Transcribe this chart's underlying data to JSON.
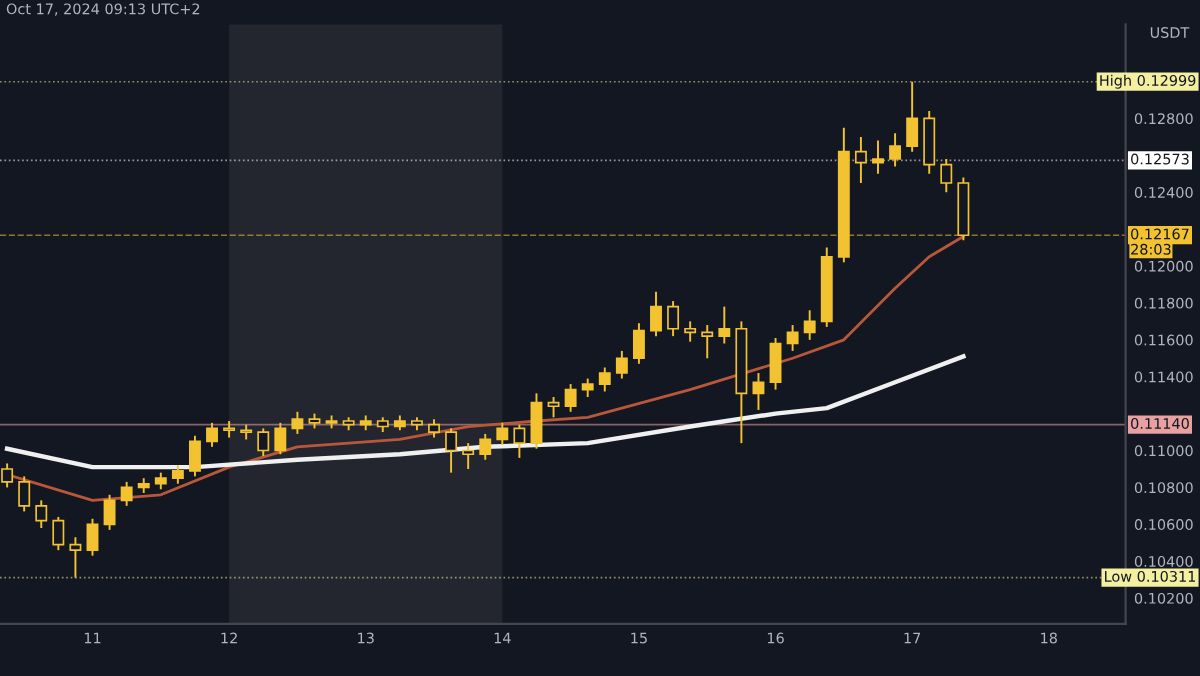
{
  "chart_data": {
    "type": "candlestick",
    "ylabel": "USDT",
    "annotations": [
      "Oct 17, 2024 09:13 UTC+2",
      "28:03"
    ],
    "x": [
      "2024-10-10T09:00",
      "2024-10-10T12:00",
      "2024-10-10T15:00",
      "2024-10-10T18:00",
      "2024-10-10T21:00",
      "2024-10-11T00:00",
      "2024-10-11T03:00",
      "2024-10-11T06:00",
      "2024-10-11T09:00",
      "2024-10-11T12:00",
      "2024-10-11T15:00",
      "2024-10-11T18:00",
      "2024-10-11T21:00",
      "2024-10-12T00:00",
      "2024-10-12T03:00",
      "2024-10-12T06:00",
      "2024-10-12T09:00",
      "2024-10-12T12:00",
      "2024-10-12T15:00",
      "2024-10-12T18:00",
      "2024-10-12T21:00",
      "2024-10-13T00:00",
      "2024-10-13T03:00",
      "2024-10-13T06:00",
      "2024-10-13T09:00",
      "2024-10-13T12:00",
      "2024-10-13T15:00",
      "2024-10-13T18:00",
      "2024-10-13T21:00",
      "2024-10-14T00:00",
      "2024-10-14T03:00",
      "2024-10-14T06:00",
      "2024-10-14T09:00",
      "2024-10-14T12:00",
      "2024-10-14T15:00",
      "2024-10-14T18:00",
      "2024-10-14T21:00",
      "2024-10-15T00:00",
      "2024-10-15T03:00",
      "2024-10-15T06:00",
      "2024-10-15T09:00",
      "2024-10-15T12:00",
      "2024-10-15T15:00",
      "2024-10-15T18:00",
      "2024-10-15T21:00",
      "2024-10-16T00:00",
      "2024-10-16T03:00",
      "2024-10-16T06:00",
      "2024-10-16T09:00",
      "2024-10-16T12:00",
      "2024-10-16T15:00",
      "2024-10-16T18:00",
      "2024-10-16T21:00",
      "2024-10-17T00:00",
      "2024-10-17T03:00",
      "2024-10-17T06:00",
      "2024-10-17T09:00"
    ],
    "ohlc": [
      [
        0.109,
        0.1093,
        0.108,
        0.1083
      ],
      [
        0.1083,
        0.1086,
        0.1067,
        0.107
      ],
      [
        0.107,
        0.1073,
        0.1058,
        0.1062
      ],
      [
        0.1062,
        0.1064,
        0.1046,
        0.1049
      ],
      [
        0.1049,
        0.1053,
        0.10311,
        0.1046
      ],
      [
        0.1046,
        0.1063,
        0.1043,
        0.106
      ],
      [
        0.106,
        0.1076,
        0.1057,
        0.1073
      ],
      [
        0.1073,
        0.1083,
        0.107,
        0.108
      ],
      [
        0.108,
        0.1085,
        0.1077,
        0.1082
      ],
      [
        0.1082,
        0.1088,
        0.1079,
        0.1085
      ],
      [
        0.1085,
        0.1092,
        0.1082,
        0.1089
      ],
      [
        0.1089,
        0.1108,
        0.1086,
        0.1105
      ],
      [
        0.1105,
        0.1115,
        0.1102,
        0.1112
      ],
      [
        0.1112,
        0.1116,
        0.1107,
        0.1111
      ],
      [
        0.1111,
        0.1114,
        0.1106,
        0.111
      ],
      [
        0.111,
        0.1112,
        0.1097,
        0.11
      ],
      [
        0.11,
        0.1115,
        0.1098,
        0.1112
      ],
      [
        0.1112,
        0.1121,
        0.1109,
        0.1117
      ],
      [
        0.1117,
        0.112,
        0.1112,
        0.1115
      ],
      [
        0.1115,
        0.1119,
        0.1112,
        0.1116
      ],
      [
        0.1116,
        0.1118,
        0.1111,
        0.1114
      ],
      [
        0.1114,
        0.1119,
        0.1111,
        0.1116
      ],
      [
        0.1116,
        0.1118,
        0.111,
        0.1113
      ],
      [
        0.1113,
        0.1119,
        0.1111,
        0.1116
      ],
      [
        0.1116,
        0.1118,
        0.1111,
        0.1114
      ],
      [
        0.1114,
        0.1117,
        0.1107,
        0.111
      ],
      [
        0.111,
        0.1112,
        0.1088,
        0.11
      ],
      [
        0.11,
        0.1104,
        0.109,
        0.1098
      ],
      [
        0.1098,
        0.1109,
        0.1095,
        0.1106
      ],
      [
        0.1106,
        0.1115,
        0.1103,
        0.1112
      ],
      [
        0.1112,
        0.1114,
        0.1096,
        0.1104
      ],
      [
        0.1104,
        0.1131,
        0.1101,
        0.1126
      ],
      [
        0.1126,
        0.1129,
        0.1118,
        0.1124
      ],
      [
        0.1124,
        0.1136,
        0.1121,
        0.1133
      ],
      [
        0.1133,
        0.1139,
        0.1129,
        0.1136
      ],
      [
        0.1136,
        0.1145,
        0.1132,
        0.1142
      ],
      [
        0.1142,
        0.1154,
        0.1139,
        0.115
      ],
      [
        0.115,
        0.1169,
        0.1147,
        0.1165
      ],
      [
        0.1165,
        0.1186,
        0.1162,
        0.1178
      ],
      [
        0.1178,
        0.1181,
        0.1162,
        0.1166
      ],
      [
        0.1166,
        0.117,
        0.1159,
        0.1164
      ],
      [
        0.1164,
        0.1168,
        0.115,
        0.1162
      ],
      [
        0.1162,
        0.1178,
        0.1158,
        0.1166
      ],
      [
        0.1166,
        0.117,
        0.1104,
        0.1131
      ],
      [
        0.1131,
        0.1142,
        0.1122,
        0.1137
      ],
      [
        0.1137,
        0.1161,
        0.1133,
        0.1158
      ],
      [
        0.1158,
        0.1168,
        0.1154,
        0.1164
      ],
      [
        0.1164,
        0.1176,
        0.116,
        0.117
      ],
      [
        0.117,
        0.121,
        0.1167,
        0.1205
      ],
      [
        0.1205,
        0.1275,
        0.1202,
        0.1262
      ],
      [
        0.1262,
        0.127,
        0.1245,
        0.1256
      ],
      [
        0.1256,
        0.1268,
        0.125,
        0.1258
      ],
      [
        0.1258,
        0.1272,
        0.1254,
        0.1265
      ],
      [
        0.1265,
        0.12999,
        0.1262,
        0.128
      ],
      [
        0.128,
        0.1284,
        0.125,
        0.1255
      ],
      [
        0.1255,
        0.1258,
        0.124,
        0.1245
      ],
      [
        0.1245,
        0.1248,
        0.1214,
        0.12167
      ]
    ],
    "color": "#f2c230",
    "series": [
      {
        "type": "line",
        "color": "#b8573a",
        "x": [
          "2024-10-10T09:00",
          "2024-10-11T00:00",
          "2024-10-11T12:00",
          "2024-10-12T00:00",
          "2024-10-12T12:00",
          "2024-10-13T06:00",
          "2024-10-13T18:00",
          "2024-10-14T06:00",
          "2024-10-14T15:00",
          "2024-10-15T09:00",
          "2024-10-16T03:00",
          "2024-10-16T12:00",
          "2024-10-16T21:00",
          "2024-10-17T03:00",
          "2024-10-17T09:00"
        ],
        "values": [
          0.1087,
          0.1073,
          0.1076,
          0.1091,
          0.1102,
          0.1106,
          0.1113,
          0.1116,
          0.1118,
          0.1133,
          0.115,
          0.116,
          0.1188,
          0.1205,
          0.1216
        ]
      },
      {
        "type": "line",
        "color": "#f0f0f0",
        "x": [
          "2024-10-10T09:00",
          "2024-10-11T00:00",
          "2024-10-11T18:00",
          "2024-10-12T12:00",
          "2024-10-13T06:00",
          "2024-10-13T21:00",
          "2024-10-14T15:00",
          "2024-10-15T09:00",
          "2024-10-16T00:00",
          "2024-10-16T09:00",
          "2024-10-16T21:00",
          "2024-10-17T09:00"
        ],
        "values": [
          0.1101,
          0.1091,
          0.1091,
          0.1095,
          0.1098,
          0.1102,
          0.1104,
          0.1113,
          0.112,
          0.1123,
          0.1137,
          0.1151
        ]
      }
    ],
    "xlim": [
      "2024-10-10T07:45",
      "2024-10-18T13:30"
    ],
    "xticks": [
      {
        "value": "2024-10-11",
        "label": "11"
      },
      {
        "value": "2024-10-12",
        "label": "12"
      },
      {
        "value": "2024-10-13",
        "label": "13"
      },
      {
        "value": "2024-10-14",
        "label": "14"
      },
      {
        "value": "2024-10-15",
        "label": "15"
      },
      {
        "value": "2024-10-16",
        "label": "16"
      },
      {
        "value": "2024-10-17",
        "label": "17"
      },
      {
        "value": "2024-10-18",
        "label": "18"
      }
    ],
    "ylim": [
      0.1006,
      0.1331
    ],
    "yticks": [
      {
        "value": 0.102,
        "label": "0.10200"
      },
      {
        "value": 0.104,
        "label": "0.10400"
      },
      {
        "value": 0.106,
        "label": "0.10600"
      },
      {
        "value": 0.108,
        "label": "0.10800"
      },
      {
        "value": 0.11,
        "label": "0.11000"
      },
      {
        "value": 0.114,
        "label": "0.11400"
      },
      {
        "value": 0.116,
        "label": "0.11600"
      },
      {
        "value": 0.118,
        "label": "0.11800"
      },
      {
        "value": 0.12,
        "label": "0.12000"
      },
      {
        "value": 0.124,
        "label": "0.12400"
      },
      {
        "value": 0.128,
        "label": "0.12800"
      }
    ],
    "ref_lines": [
      {
        "axis": "y",
        "value": 0.12999,
        "label": "High 0.12999",
        "color": "#f5f0a0",
        "line_style": "dotted"
      },
      {
        "axis": "y",
        "value": 0.12573,
        "label": "0.12573",
        "color": "#ffffff",
        "line_style": "dotted"
      },
      {
        "axis": "y",
        "value": 0.12167,
        "label": "0.12167",
        "color": "#f2c230",
        "line_style": "dashed"
      },
      {
        "axis": "y",
        "value": 0.1114,
        "label": "0.11140",
        "color": "#e8a0a0",
        "line_style": "solid"
      },
      {
        "axis": "y",
        "value": 0.10311,
        "label": "Low 0.10311",
        "color": "#f5f0a0",
        "line_style": "dotted"
      }
    ],
    "bands": [
      {
        "axis": "x",
        "from": "2024-10-12",
        "to": "2024-10-14",
        "color": "#23262f"
      }
    ],
    "grid": false,
    "legend": false
  }
}
